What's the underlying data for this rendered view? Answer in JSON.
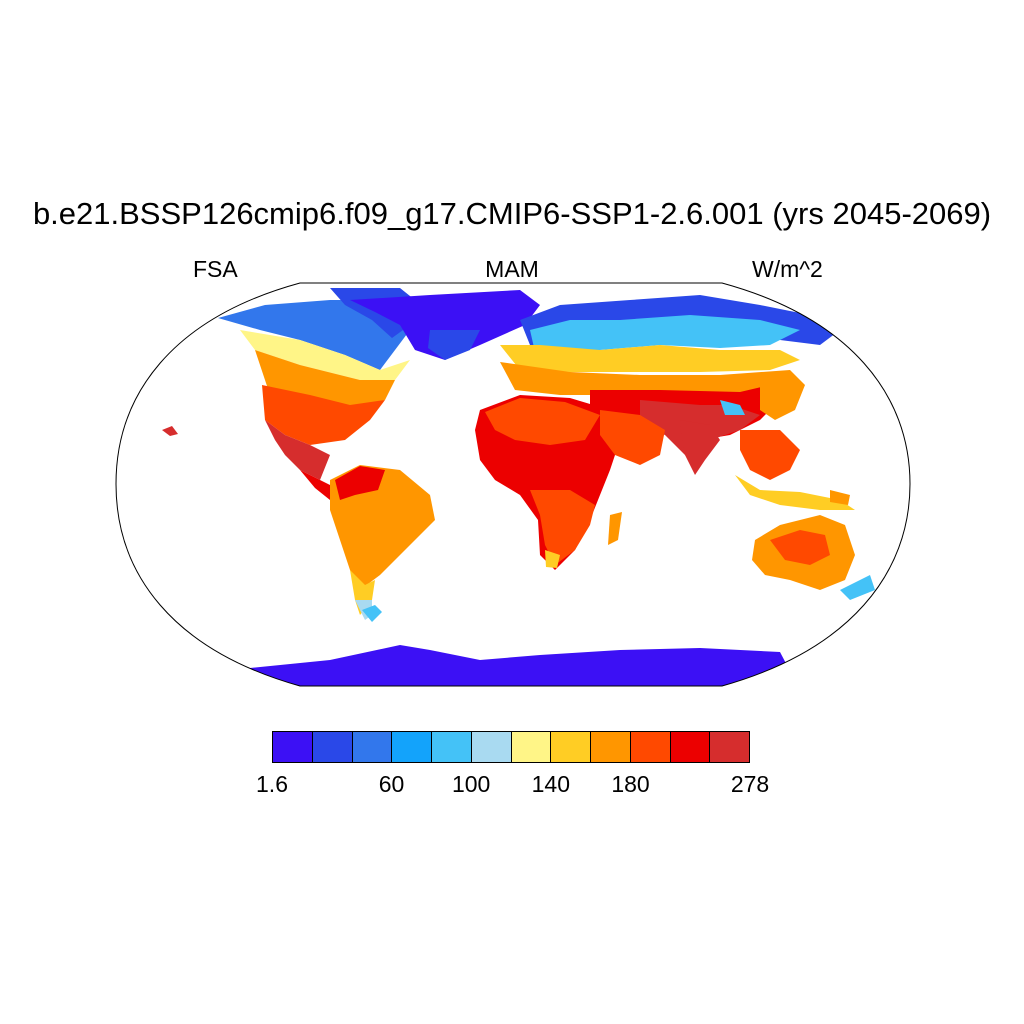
{
  "title": "b.e21.BSSP126cmip6.f09_g17.CMIP6-SSP1-2.6.001 (yrs 2045-2069)",
  "left_label": "FSA",
  "center_label": "MAM",
  "right_label": "W/m^2",
  "colors": {
    "deep_purple": "#3c10f5",
    "blue": "#2a48e8",
    "mid_blue": "#3277ec",
    "sky_blue": "#13a3fb",
    "light_blue": "#44c2f7",
    "pale_blue": "#a9daf1",
    "pale_yellow": "#fff587",
    "yellow": "#ffcd24",
    "orange": "#ff9600",
    "red_orange": "#ff4900",
    "red": "#ec0000",
    "dark_red": "#d62d2d"
  },
  "colorbar": {
    "swatches": [
      "#3c10f5",
      "#2a48e8",
      "#3277ec",
      "#13a3fb",
      "#44c2f7",
      "#a9daf1",
      "#fff587",
      "#ffcd24",
      "#ff9600",
      "#ff4900",
      "#ec0000",
      "#d62d2d"
    ],
    "tick_labels": [
      "1.6",
      "60",
      "100",
      "140",
      "180",
      "278"
    ],
    "tick_boundary_index": [
      0,
      3,
      5,
      7,
      9,
      12
    ]
  }
}
